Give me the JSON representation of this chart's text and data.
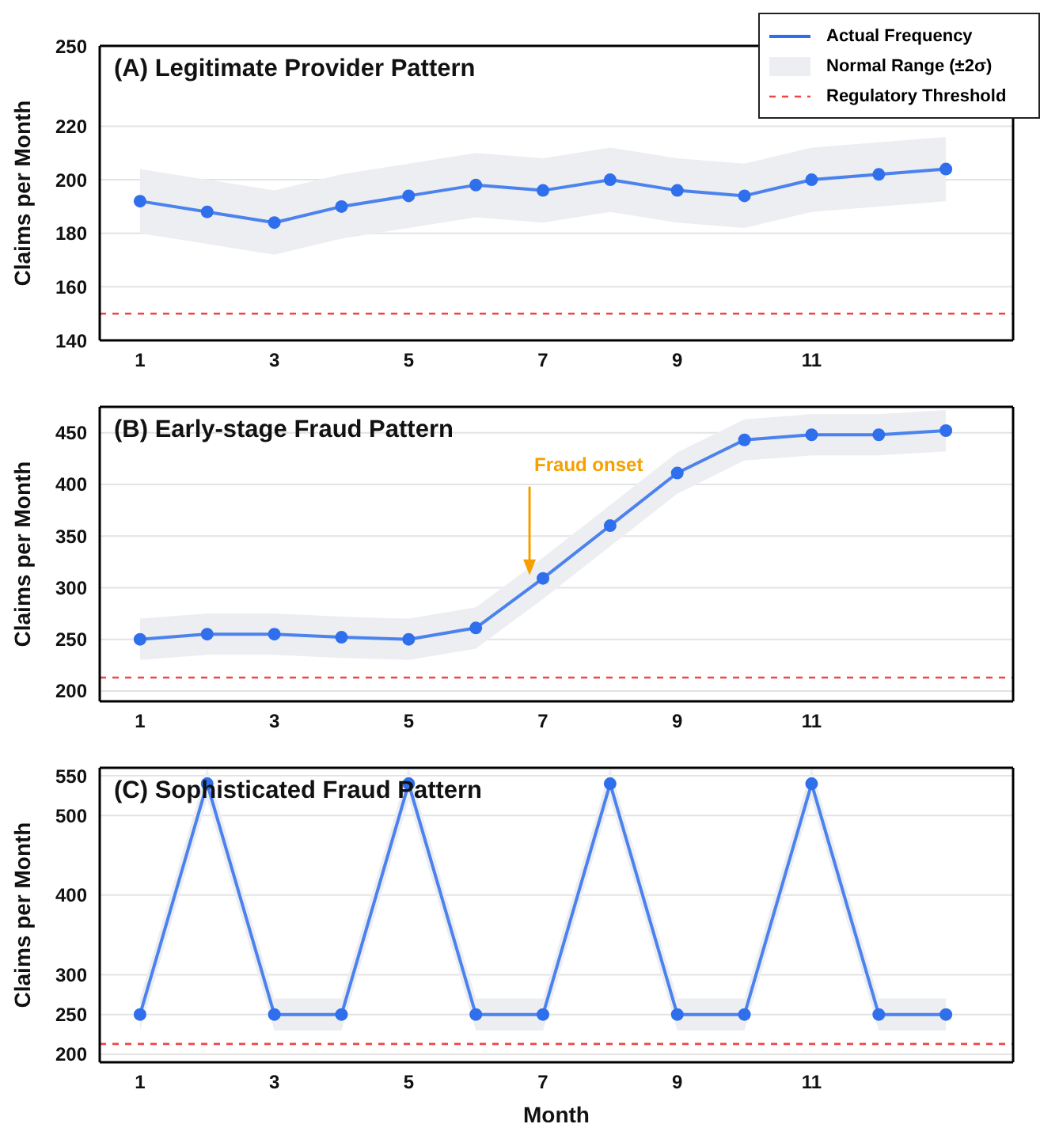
{
  "chart_data": [
    {
      "type": "line",
      "title": "(A) Legitimate Provider Pattern",
      "ylabel": "Claims per Month",
      "x": [
        1,
        2,
        3,
        4,
        5,
        6,
        7,
        8,
        9,
        10,
        11,
        12,
        13
      ],
      "series": [
        {
          "name": "Actual Frequency",
          "color": "#2f6fec",
          "values": [
            192,
            188,
            184,
            190,
            194,
            198,
            196,
            200,
            196,
            194,
            200,
            202,
            204
          ],
          "lower": [
            180,
            176,
            172,
            178,
            182,
            186,
            184,
            188,
            184,
            182,
            188,
            190,
            192
          ],
          "upper": [
            204,
            200,
            196,
            202,
            206,
            210,
            208,
            212,
            208,
            206,
            212,
            214,
            216
          ]
        }
      ],
      "annotations": [
        "Normal Range (±2σ)"
      ],
      "ref_lines": [
        {
          "axis": "y",
          "value": 150,
          "label": "Regulatory Threshold",
          "color": "#f04545",
          "line_style": "dashed"
        }
      ],
      "xlim": [
        0.4,
        14
      ],
      "xticks": [
        1,
        3,
        5,
        7,
        9,
        11
      ],
      "ylim": [
        140,
        250
      ],
      "yticks": [
        140,
        160,
        180,
        200,
        220,
        250
      ],
      "grid": "y",
      "legend": "top right",
      "marker": "circle",
      "line_style": "solid"
    },
    {
      "type": "line",
      "title": "(B) Early-stage Fraud Pattern",
      "ylabel": "Claims per Month",
      "x": [
        1,
        2,
        3,
        4,
        5,
        6,
        7,
        8,
        9,
        10,
        11,
        12,
        13
      ],
      "series": [
        {
          "color": "#2f6fec",
          "values": [
            250,
            255,
            255,
            252,
            250,
            261,
            309,
            360,
            411,
            443,
            448,
            448,
            452
          ],
          "lower": [
            230,
            235,
            235,
            232,
            230,
            241,
            289,
            340,
            391,
            423,
            428,
            428,
            432
          ],
          "upper": [
            270,
            275,
            275,
            272,
            270,
            281,
            329,
            380,
            431,
            463,
            468,
            468,
            472
          ]
        }
      ],
      "ref_lines": [
        {
          "axis": "y",
          "value": 213,
          "color": "#f04545",
          "line_style": "dashed"
        }
      ],
      "annotations": [
        {
          "text": "Fraud onset",
          "x": 6.8,
          "y": 312
        }
      ],
      "xlim": [
        0.4,
        14
      ],
      "xticks": [
        1,
        3,
        5,
        7,
        9,
        11
      ],
      "ylim": [
        190,
        475
      ],
      "yticks": [
        200,
        250,
        300,
        350,
        400,
        450
      ],
      "grid": "y",
      "marker": "circle",
      "line_style": "solid"
    },
    {
      "type": "line",
      "title": "(C) Sophisticated Fraud Pattern",
      "xlabel": "Month",
      "ylabel": "Claims per Month",
      "x": [
        1,
        2,
        3,
        4,
        5,
        6,
        7,
        8,
        9,
        10,
        11,
        12,
        13
      ],
      "series": [
        {
          "color": "#2f6fec",
          "values": [
            250,
            540,
            250,
            250,
            540,
            250,
            250,
            540,
            250,
            250,
            540,
            250,
            250
          ],
          "lower": [
            230,
            520,
            230,
            230,
            520,
            230,
            230,
            520,
            230,
            230,
            520,
            230,
            230
          ],
          "upper": [
            270,
            560,
            270,
            270,
            560,
            270,
            270,
            560,
            270,
            270,
            560,
            270,
            270
          ]
        }
      ],
      "ref_lines": [
        {
          "axis": "y",
          "value": 213,
          "color": "#f04545",
          "line_style": "dashed"
        }
      ],
      "xlim": [
        0.4,
        14
      ],
      "xticks": [
        1,
        3,
        5,
        7,
        9,
        11
      ],
      "ylim": [
        190,
        560
      ],
      "yticks": [
        200,
        250,
        300,
        400,
        500,
        550
      ],
      "grid": "y",
      "marker": "circle",
      "line_style": "solid"
    }
  ]
}
